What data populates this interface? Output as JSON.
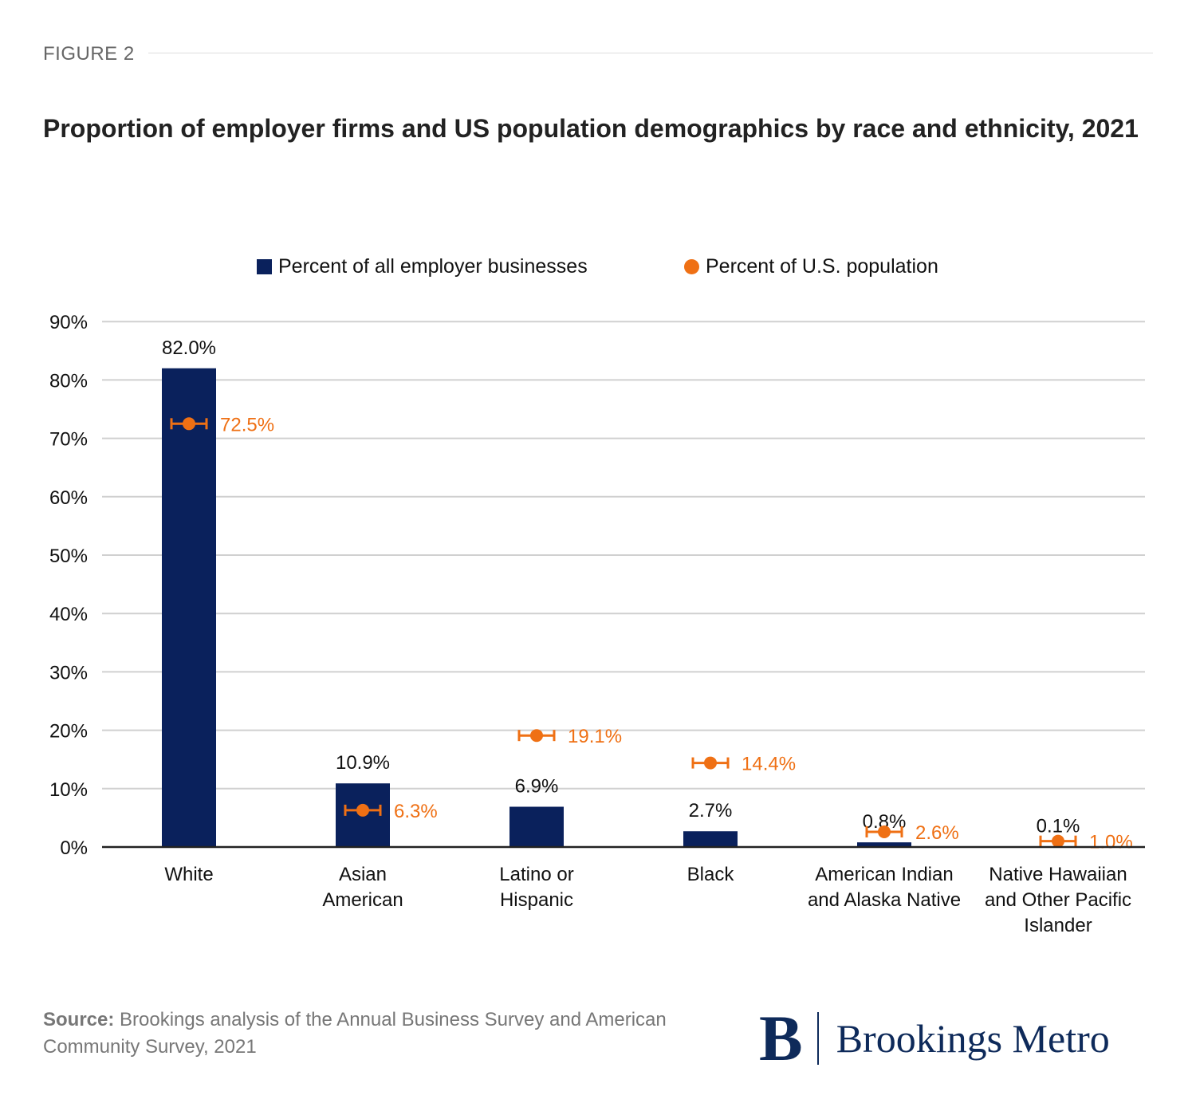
{
  "figure_label": "FIGURE 2",
  "title": "Proportion of employer firms and US population demographics by race and ethnicity, 2021",
  "legend": {
    "businesses": "Percent of all employer businesses",
    "population": "Percent of U.S. population"
  },
  "colors": {
    "bar": "#0a215c",
    "population": "#ef7014",
    "grid": "#d0d0d0",
    "axis": "#222222",
    "text": "#111111"
  },
  "chart_data": {
    "type": "bar",
    "title": "Proportion of employer firms and US population demographics by race and ethnicity, 2021",
    "categories": [
      [
        "White"
      ],
      [
        "Asian",
        "American"
      ],
      [
        "Latino or",
        "Hispanic"
      ],
      [
        "Black"
      ],
      [
        "American Indian",
        "and Alaska Native"
      ],
      [
        "Native Hawaiian",
        "and Other Pacific",
        "Islander"
      ]
    ],
    "series": [
      {
        "name": "Percent of all employer businesses",
        "kind": "bar",
        "values": [
          82.0,
          10.9,
          6.9,
          2.7,
          0.8,
          0.1
        ],
        "labels": [
          "82.0%",
          "10.9%",
          "6.9%",
          "2.7%",
          "0.8%",
          "0.1%"
        ]
      },
      {
        "name": "Percent of U.S. population",
        "kind": "point-with-errorbar",
        "values": [
          72.5,
          6.3,
          19.1,
          14.4,
          2.6,
          1.0
        ],
        "labels": [
          "72.5%",
          "6.3%",
          "19.1%",
          "14.4%",
          "2.6%",
          "1.0%"
        ]
      }
    ],
    "yticks": [
      "0%",
      "10%",
      "20%",
      "30%",
      "40%",
      "50%",
      "60%",
      "70%",
      "80%",
      "90%"
    ],
    "ylim": [
      0,
      90
    ],
    "xlabel": "",
    "ylabel": "",
    "grid": true
  },
  "source": {
    "label": "Source:",
    "text": " Brookings analysis of the Annual Business Survey and American Community Survey, 2021"
  },
  "brand": {
    "mark": "B",
    "name": "Brookings Metro"
  }
}
